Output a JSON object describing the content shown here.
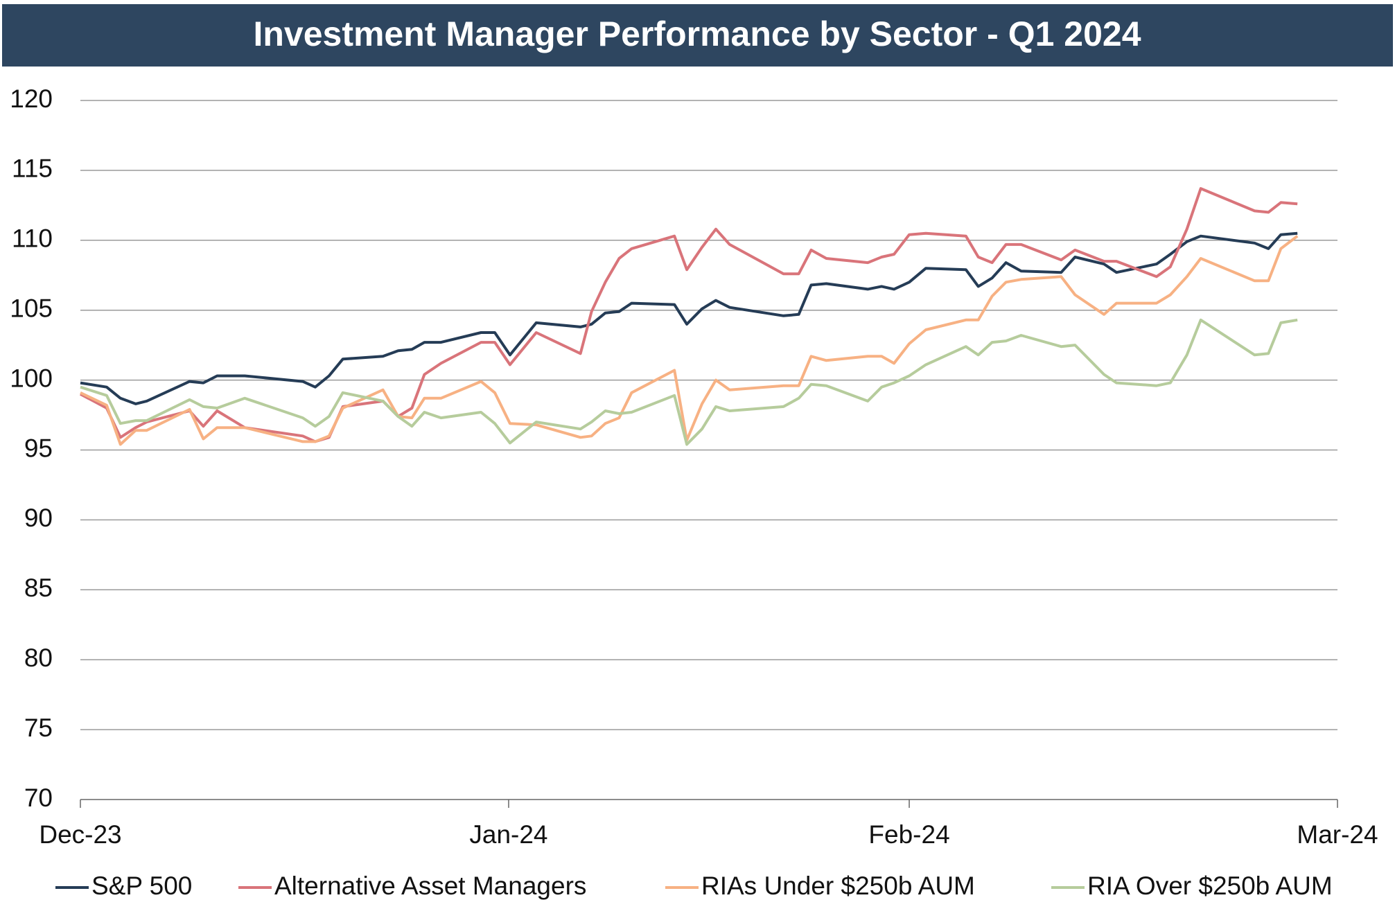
{
  "chart_data": {
    "type": "line",
    "title": "Investment Manager Performance by Sector - Q1 2024",
    "x": [
      0,
      1.9,
      2.9,
      4.0,
      4.8,
      7.9,
      8.9,
      9.9,
      11.9,
      16.1,
      17.0,
      18.0,
      19.0,
      21.9,
      23.0,
      24.0,
      24.9,
      26.1,
      29.0,
      30.0,
      31.1,
      33.0,
      36.2,
      37.0,
      38.0,
      39.0,
      39.9,
      43.0,
      43.9,
      45.0,
      46.0,
      47.0,
      50.9,
      52.0,
      52.9,
      54.0,
      57.0,
      58.0,
      58.9,
      60.0,
      61.2,
      64.1,
      65.0,
      66.0,
      67.0,
      68.1,
      71.0,
      72.0,
      74.1,
      75.0,
      77.9,
      78.9,
      80.1,
      81.1,
      85.0,
      86.0,
      86.9,
      88.1
    ],
    "series": [
      {
        "name": "S&P 500",
        "color": "#253c56",
        "values": [
          99.8,
          99.5,
          98.7,
          98.3,
          98.5,
          99.9,
          99.8,
          100.3,
          100.3,
          99.9,
          99.5,
          100.3,
          101.5,
          101.7,
          102.1,
          102.2,
          102.7,
          102.7,
          103.4,
          103.4,
          101.8,
          104.1,
          103.8,
          104.0,
          104.8,
          104.9,
          105.5,
          105.4,
          104.0,
          105.1,
          105.7,
          105.2,
          104.6,
          104.7,
          106.8,
          106.9,
          106.5,
          106.7,
          106.5,
          107.0,
          108.0,
          107.9,
          106.7,
          107.3,
          108.4,
          107.8,
          107.7,
          108.8,
          108.3,
          107.7,
          108.3,
          109.0,
          109.9,
          110.3,
          109.8,
          109.4,
          110.4,
          110.5
        ]
      },
      {
        "name": "Alternative Asset Managers",
        "color": "#d9747a",
        "values": [
          99.0,
          98.0,
          95.9,
          96.6,
          97.0,
          97.8,
          96.7,
          97.8,
          96.6,
          96.0,
          95.6,
          95.9,
          98.1,
          98.5,
          97.4,
          98.0,
          100.4,
          101.2,
          102.7,
          102.7,
          101.1,
          103.4,
          101.9,
          104.9,
          107.0,
          108.7,
          109.4,
          110.3,
          107.9,
          109.5,
          110.8,
          109.7,
          107.6,
          107.6,
          109.3,
          108.7,
          108.4,
          108.8,
          109.0,
          110.4,
          110.5,
          110.3,
          108.8,
          108.4,
          109.7,
          109.7,
          108.6,
          109.3,
          108.5,
          108.5,
          107.4,
          108.1,
          110.8,
          113.7,
          112.1,
          112.0,
          112.7,
          112.6
        ]
      },
      {
        "name": "RIAs Under $250b AUM",
        "color": "#f7b183",
        "values": [
          99.1,
          98.2,
          95.4,
          96.4,
          96.4,
          97.9,
          95.8,
          96.6,
          96.6,
          95.6,
          95.6,
          96.0,
          98.0,
          99.3,
          97.4,
          97.3,
          98.7,
          98.7,
          99.9,
          99.1,
          96.9,
          96.8,
          95.9,
          96.0,
          96.9,
          97.3,
          99.1,
          100.7,
          95.7,
          98.3,
          100.0,
          99.3,
          99.6,
          99.6,
          101.7,
          101.4,
          101.7,
          101.7,
          101.2,
          102.6,
          103.6,
          104.3,
          104.3,
          106.0,
          107.0,
          107.2,
          107.4,
          106.1,
          104.7,
          105.5,
          105.5,
          106.1,
          107.4,
          108.7,
          107.1,
          107.1,
          109.4,
          110.3
        ]
      },
      {
        "name": "RIA Over $250b AUM",
        "color": "#b6cc9c",
        "values": [
          99.5,
          98.9,
          96.9,
          97.1,
          97.1,
          98.6,
          98.1,
          98.0,
          98.7,
          97.3,
          96.7,
          97.4,
          99.1,
          98.5,
          97.4,
          96.7,
          97.7,
          97.3,
          97.7,
          96.9,
          95.5,
          97.0,
          96.5,
          97.0,
          97.8,
          97.6,
          97.7,
          98.9,
          95.4,
          96.5,
          98.1,
          97.8,
          98.1,
          98.7,
          99.7,
          99.6,
          98.5,
          99.5,
          99.8,
          100.3,
          101.1,
          102.4,
          101.8,
          102.7,
          102.8,
          103.2,
          102.4,
          102.5,
          100.4,
          99.8,
          99.6,
          99.8,
          101.8,
          104.3,
          101.8,
          101.9,
          104.1,
          104.3
        ]
      }
    ],
    "xlim": [
      0,
      91
    ],
    "xticks": [
      {
        "value": 0,
        "label": "Dec-23"
      },
      {
        "value": 31,
        "label": "Jan-24"
      },
      {
        "value": 60,
        "label": "Feb-24"
      },
      {
        "value": 91,
        "label": "Mar-24"
      }
    ],
    "ylim": [
      70,
      120
    ],
    "yticks": [
      70,
      75,
      80,
      85,
      90,
      95,
      100,
      105,
      110,
      115,
      120
    ],
    "grid": true,
    "legend": "bottom"
  }
}
